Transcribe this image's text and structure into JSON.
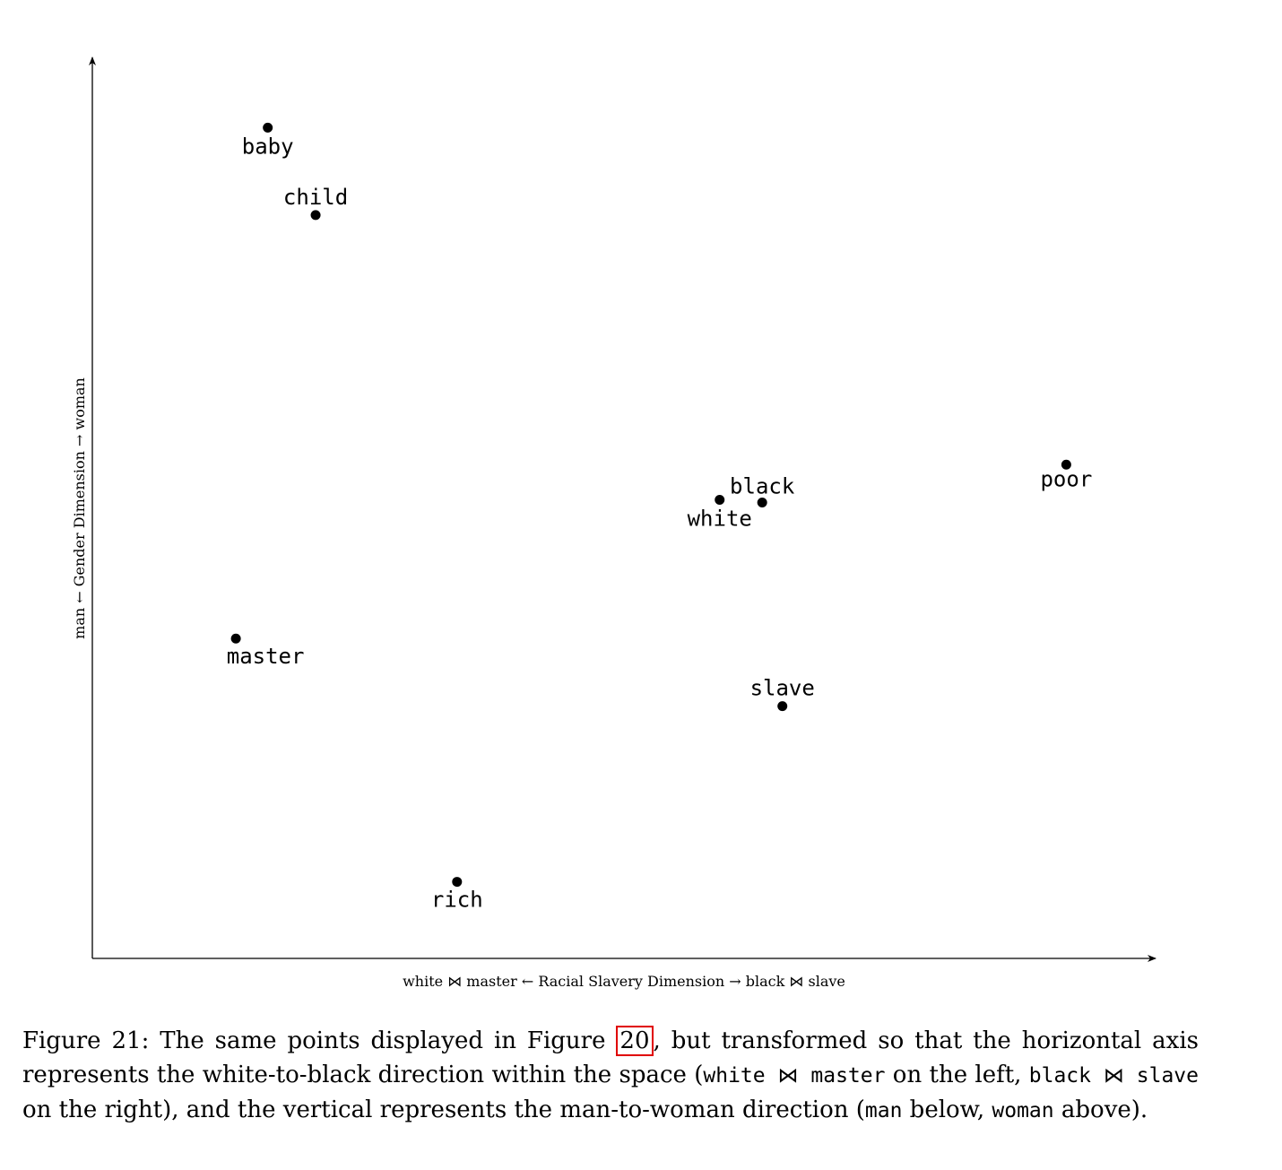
{
  "chart_data": {
    "type": "scatter",
    "points": [
      {
        "label": "baby",
        "x": 0.165,
        "y": 0.922
      },
      {
        "label": "child",
        "x": 0.21,
        "y": 0.825
      },
      {
        "label": "master",
        "x": 0.135,
        "y": 0.355
      },
      {
        "label": "rich",
        "x": 0.343,
        "y": 0.085
      },
      {
        "label": "white",
        "x": 0.59,
        "y": 0.509
      },
      {
        "label": "black",
        "x": 0.63,
        "y": 0.506
      },
      {
        "label": "slave",
        "x": 0.649,
        "y": 0.28
      },
      {
        "label": "poor",
        "x": 0.916,
        "y": 0.548
      }
    ],
    "xlim": [
      0,
      1
    ],
    "ylim": [
      0,
      1
    ],
    "xlabel": {
      "left_a": "white",
      "join1": "⋈",
      "left_b": "master",
      "middle": "← Racial Slavery Dimension →",
      "right_a": "black",
      "join2": "⋈",
      "right_b": "slave"
    },
    "ylabel": {
      "low": "man",
      "middle": "← Gender Dimension →",
      "high": "woman"
    },
    "grid": false
  },
  "caption": {
    "part1": "Figure 21: The same points displayed in Figure ",
    "ref": "20",
    "part2": ", but transformed so that the horizontal axis represents the white-to-black direction within the space (",
    "code1": "white ⋈ master",
    "part3": " on the left, ",
    "code2": "black ⋈ slave",
    "part4": " on the right), and the vertical represents the man-to-woman direction (",
    "code3": "man",
    "part5": " below, ",
    "code4": "woman",
    "part6": " above)."
  }
}
